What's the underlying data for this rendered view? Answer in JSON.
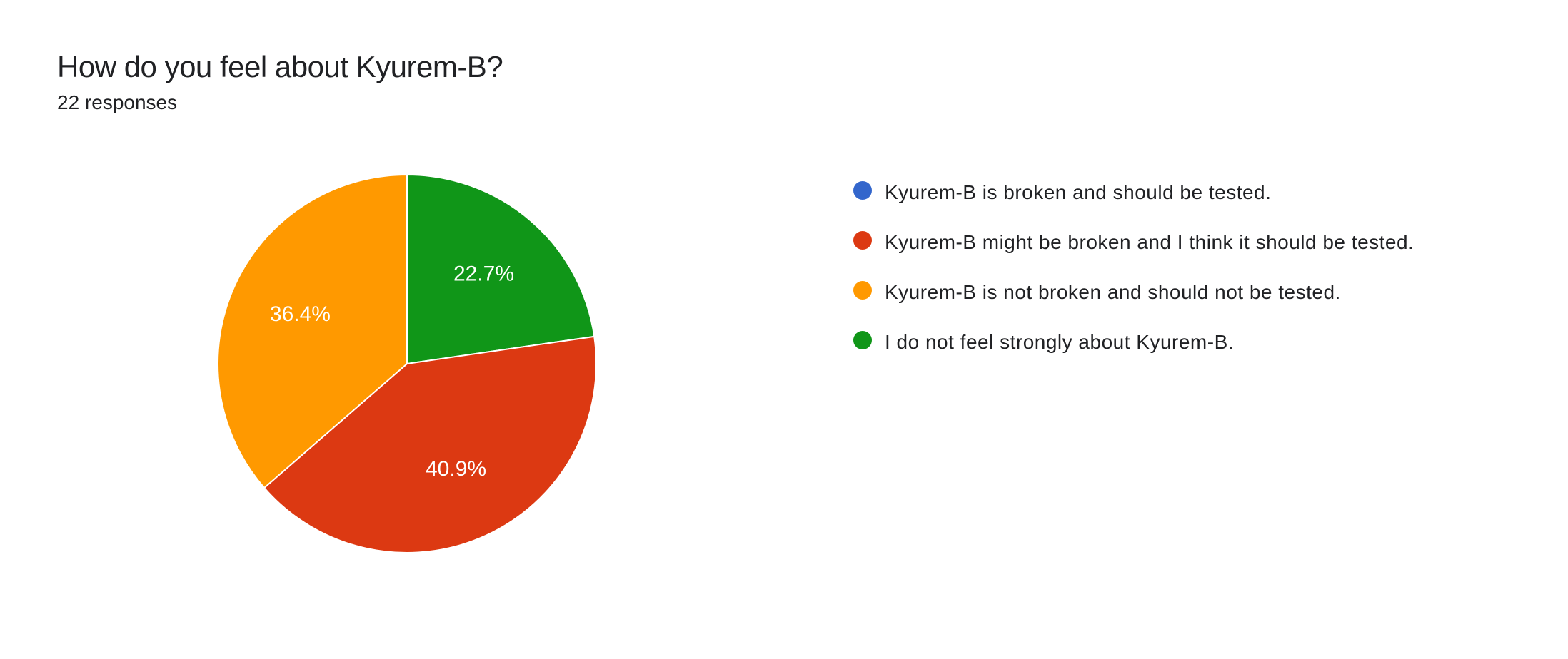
{
  "header": {
    "title": "How do you feel about Kyurem-B?",
    "subtitle": "22 responses"
  },
  "chart": {
    "type": "pie",
    "background_color": "#ffffff",
    "stroke_color": "#ffffff",
    "stroke_width": 2,
    "title_fontsize": 42,
    "subtitle_fontsize": 28,
    "label_fontsize": 30,
    "label_color": "#ffffff",
    "legend_fontsize": 28,
    "legend_text_color": "#202124",
    "radius": 265,
    "start_angle_deg": 0,
    "slices": [
      {
        "label": "Kyurem-B is broken and should be tested.",
        "value": 0.0,
        "color": "#3366cc",
        "percent_text": "0%",
        "show_label": false
      },
      {
        "label": "Kyurem-B might be broken and I think it should be tested.",
        "value": 40.9,
        "color": "#dc3912",
        "percent_text": "40.9%",
        "show_label": true
      },
      {
        "label": "Kyurem-B is not broken and should not be tested.",
        "value": 36.4,
        "color": "#ff9900",
        "percent_text": "36.4%",
        "show_label": true
      },
      {
        "label": "I do not feel strongly about Kyurem-B.",
        "value": 22.7,
        "color": "#109618",
        "percent_text": "22.7%",
        "show_label": true
      }
    ]
  }
}
